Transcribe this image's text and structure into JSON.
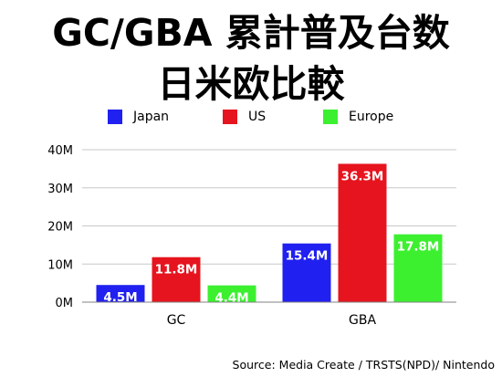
{
  "title_line_1": "GC/GBA 累計普及台数",
  "title_line_2": "日米欧比較",
  "source": "Source: Media Create / TRSTS(NPD)/ Nintendo",
  "chart_data": {
    "type": "bar",
    "categories": [
      "GC",
      "GBA"
    ],
    "series": [
      {
        "name": "Japan",
        "values": [
          4.5,
          15.4
        ],
        "labels": [
          "4.5M",
          "15.4M"
        ],
        "color": "#2020F0"
      },
      {
        "name": "US",
        "values": [
          11.8,
          36.3
        ],
        "labels": [
          "11.8M",
          "36.3M"
        ],
        "color": "#E6141E"
      },
      {
        "name": "Europe",
        "values": [
          4.4,
          17.8
        ],
        "labels": [
          "4.4M",
          "17.8M"
        ],
        "color": "#3CF030"
      }
    ],
    "yticks": [
      0,
      10,
      20,
      30,
      40
    ],
    "ytick_labels": [
      "0M",
      "10M",
      "20M",
      "30M",
      "40M"
    ],
    "ylim": [
      0,
      40
    ],
    "grid": true,
    "legend_position": "top",
    "xlabel": "",
    "ylabel": ""
  }
}
